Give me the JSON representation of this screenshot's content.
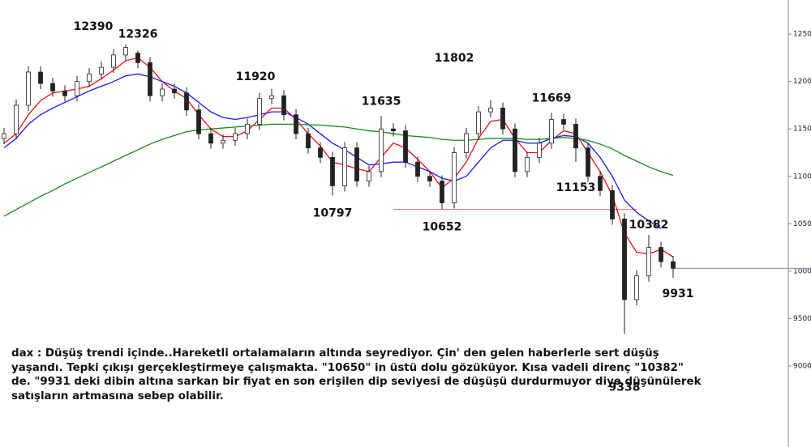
{
  "chart_data": {
    "type": "candlestick",
    "ylim": [
      8760,
      12860
    ],
    "yticks": [
      {
        "value": 9000,
        "label": "9000,"
      },
      {
        "value": 9500,
        "label": "9500,"
      },
      10000,
      10500,
      11000,
      11500,
      12000,
      12500
    ],
    "open": [
      11400,
      11450,
      11750,
      12100,
      11980,
      11900,
      11850,
      12000,
      12080,
      12150,
      12280,
      12300,
      12200,
      11850,
      11920,
      11880,
      11700,
      11450,
      11350,
      11380,
      11450,
      11550,
      11820,
      11850,
      11650,
      11450,
      11300,
      11200,
      10900,
      11300,
      10950,
      11050,
      11500,
      11480,
      11150,
      11000,
      10950,
      10720,
      11250,
      11450,
      11680,
      11720,
      11500,
      11050,
      11200,
      11350,
      11600,
      11550,
      11300,
      11000,
      10850,
      10550,
      9700,
      9950,
      10250,
      10100
    ],
    "high": [
      11510,
      11810,
      12160,
      12160,
      12040,
      11960,
      12060,
      12140,
      12210,
      12340,
      12390,
      12326,
      12260,
      11980,
      11980,
      11940,
      11760,
      11510,
      11440,
      11510,
      11610,
      11880,
      11920,
      11910,
      11710,
      11510,
      11360,
      11260,
      11360,
      11360,
      11110,
      11635,
      11560,
      11540,
      11210,
      11060,
      11010,
      11310,
      11510,
      11740,
      11802,
      11780,
      11560,
      11260,
      11410,
      11669,
      11660,
      11610,
      11360,
      11060,
      10910,
      10610,
      10010,
      10382,
      10310,
      10160
    ],
    "low": [
      11340,
      11390,
      11690,
      11920,
      11840,
      11790,
      11790,
      11940,
      12020,
      12090,
      12220,
      12140,
      11790,
      11790,
      11820,
      11640,
      11390,
      11290,
      11290,
      11320,
      11390,
      11490,
      11760,
      11590,
      11390,
      11240,
      11140,
      10797,
      10840,
      10890,
      10890,
      10990,
      11420,
      11090,
      10940,
      10890,
      10652,
      10660,
      11190,
      11390,
      11620,
      11440,
      10990,
      10990,
      11140,
      11290,
      11490,
      11153,
      10940,
      10790,
      10490,
      9338,
      9640,
      9890,
      10040,
      9931
    ],
    "close": [
      11450,
      11750,
      12100,
      11980,
      11900,
      11850,
      12000,
      12080,
      12150,
      12280,
      12360,
      12200,
      11850,
      11920,
      11880,
      11700,
      11450,
      11350,
      11380,
      11450,
      11550,
      11820,
      11850,
      11650,
      11450,
      11300,
      11200,
      10900,
      11300,
      10950,
      11050,
      11500,
      11480,
      11150,
      11000,
      10950,
      10720,
      11250,
      11450,
      11680,
      11720,
      11500,
      11050,
      11200,
      11350,
      11600,
      11550,
      11300,
      11000,
      10850,
      10550,
      9700,
      9950,
      10250,
      10100,
      10030
    ],
    "lines": [
      {
        "color": "#ee1111",
        "values": [
          11350,
          11450,
          11650,
          11800,
          11880,
          11900,
          11920,
          11950,
          12030,
          12120,
          12220,
          12250,
          12150,
          12000,
          11900,
          11820,
          11650,
          11500,
          11420,
          11420,
          11480,
          11600,
          11720,
          11720,
          11600,
          11450,
          11320,
          11150,
          11120,
          11080,
          11050,
          11200,
          11350,
          11300,
          11180,
          11050,
          10880,
          10980,
          11150,
          11400,
          11580,
          11600,
          11400,
          11250,
          11250,
          11380,
          11480,
          11450,
          11250,
          11050,
          10800,
          10400,
          10200,
          10180,
          10230,
          10150
        ]
      },
      {
        "color": "#1a1ae6",
        "values": [
          11300,
          11400,
          11550,
          11650,
          11720,
          11780,
          11840,
          11900,
          11950,
          12000,
          12060,
          12080,
          12050,
          12000,
          11950,
          11880,
          11780,
          11680,
          11620,
          11600,
          11620,
          11650,
          11680,
          11680,
          11620,
          11550,
          11450,
          11350,
          11280,
          11200,
          11120,
          11130,
          11150,
          11150,
          11100,
          11050,
          10980,
          10950,
          11000,
          11150,
          11300,
          11380,
          11380,
          11350,
          11350,
          11400,
          11430,
          11420,
          11350,
          11200,
          11000,
          10750,
          10620,
          10530,
          10450,
          null
        ]
      },
      {
        "color": "#1a8a1a",
        "values": [
          10580,
          10650,
          10720,
          10790,
          10850,
          10920,
          10980,
          11040,
          11100,
          11160,
          11220,
          11280,
          11340,
          11390,
          11430,
          11470,
          11490,
          11500,
          11510,
          11520,
          11530,
          11540,
          11550,
          11550,
          11550,
          11545,
          11540,
          11530,
          11520,
          11500,
          11480,
          11470,
          11450,
          11430,
          11420,
          11410,
          11390,
          11380,
          11380,
          11390,
          11400,
          11400,
          11400,
          11390,
          11390,
          11400,
          11410,
          11400,
          11380,
          11340,
          11290,
          11220,
          11160,
          11100,
          11050,
          11010
        ]
      }
    ],
    "hlines": [
      {
        "value": 10650,
        "from": 32,
        "to": 52,
        "color": "#e06060"
      },
      {
        "value": 10030,
        "from": 55,
        "color": "#8888cc"
      }
    ],
    "annotations": [
      {
        "value": 12390,
        "candle": 10,
        "place": "above"
      },
      {
        "value": 12326,
        "candle": 11,
        "place": "above"
      },
      {
        "value": 11920,
        "candle": 22,
        "place": "above"
      },
      {
        "value": 11635,
        "candle": 31,
        "place": "above"
      },
      {
        "value": 11802,
        "candle": 40,
        "place": "above"
      },
      {
        "value": 11669,
        "candle": 45,
        "place": "above"
      },
      {
        "value": 11153,
        "candle": 47,
        "place": "below"
      },
      {
        "value": 10797,
        "candle": 27,
        "place": "below"
      },
      {
        "value": 10652,
        "candle": 36,
        "place": "below"
      },
      {
        "value": 10382,
        "candle": 53,
        "place": "below"
      },
      {
        "value": 9931,
        "candle": 55,
        "place": "below"
      },
      {
        "value": 9338,
        "candle": 51,
        "place": "below"
      }
    ]
  },
  "commentary": [
    "dax : Düşüş trendi içinde..Hareketli ortalamaların altında seyrediyor. Çin' den gelen haberlerle sert düşüş",
    "yaşandı. Tepki çıkışı gerçekleştirmeye çalışmakta. \"10650\" in üstü dolu gözüküyor. Kısa vadeli direnç \"10382\"",
    "de. \"9931 deki dibin altına sarkan bir fiyat en son erişilen dip seviyesi de düşüşü durdurmuyor diye düşünülerek",
    "satışların artmasına sebep olabilir."
  ]
}
